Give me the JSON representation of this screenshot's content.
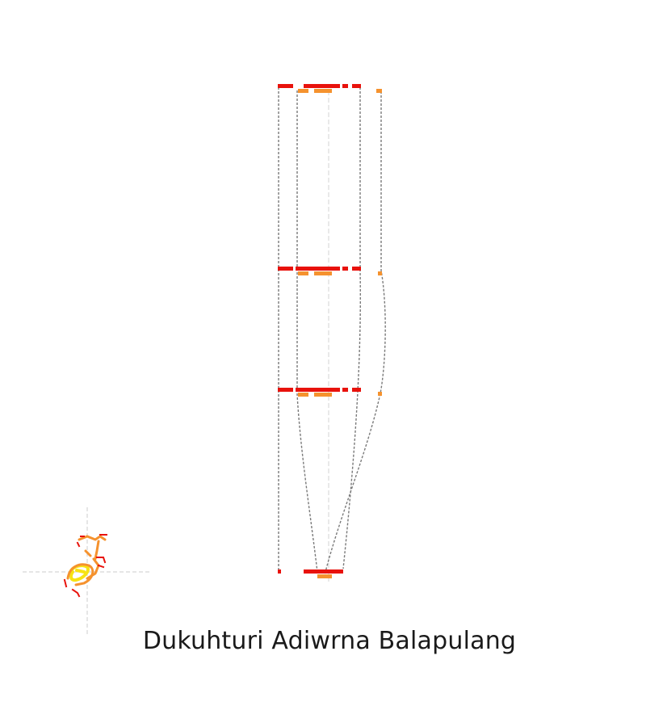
{
  "title": "Dukuhturi Adiwrna Balapulang",
  "colors": {
    "background": "#ffffff",
    "track_red": "#e8120c",
    "track_orange": "#f5922e",
    "track_yellow": "#f7e313",
    "connector": "#7a7a7a",
    "guide": "#cccccc",
    "title": "#1a1a1a"
  }
}
